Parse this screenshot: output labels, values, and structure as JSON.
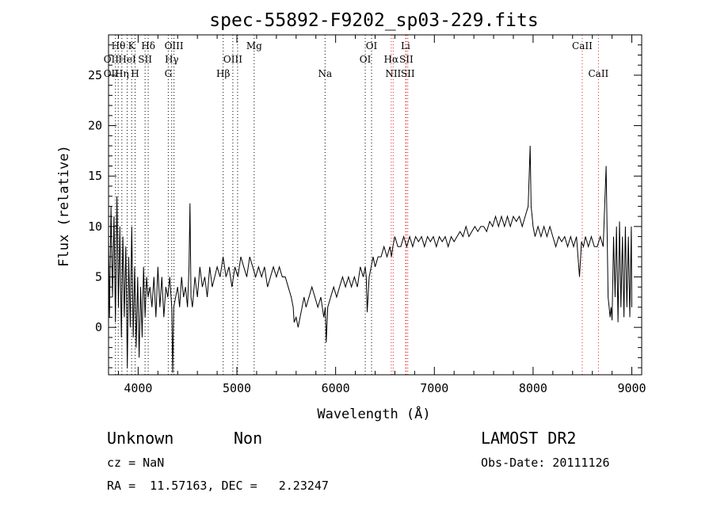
{
  "chart_data": {
    "type": "line",
    "title": "spec-55892-F9202_sp03-229.fits",
    "xlabel": "Wavelength (Å)",
    "ylabel": "Flux (relative)",
    "xlim": [
      3700,
      9100
    ],
    "ylim": [
      -4.7,
      29
    ],
    "grid": false,
    "x_ticks": [
      4000,
      5000,
      6000,
      7000,
      8000,
      9000
    ],
    "y_ticks": [
      0,
      5,
      10,
      15,
      20,
      25
    ],
    "series": [
      {
        "color": "#000000",
        "x": [
          3700,
          3710,
          3725,
          3740,
          3755,
          3770,
          3785,
          3800,
          3815,
          3830,
          3845,
          3860,
          3875,
          3890,
          3905,
          3920,
          3935,
          3950,
          3965,
          3980,
          3995,
          4010,
          4025,
          4040,
          4055,
          4070,
          4085,
          4100,
          4120,
          4140,
          4160,
          4180,
          4200,
          4220,
          4240,
          4260,
          4280,
          4300,
          4320,
          4340,
          4350,
          4360,
          4380,
          4400,
          4420,
          4440,
          4460,
          4480,
          4500,
          4515,
          4525,
          4535,
          4550,
          4575,
          4600,
          4625,
          4650,
          4675,
          4700,
          4725,
          4750,
          4775,
          4800,
          4830,
          4860,
          4890,
          4920,
          4950,
          4980,
          5010,
          5040,
          5070,
          5100,
          5130,
          5160,
          5190,
          5220,
          5250,
          5280,
          5310,
          5340,
          5370,
          5400,
          5430,
          5460,
          5490,
          5520,
          5550,
          5570,
          5580,
          5600,
          5620,
          5640,
          5660,
          5680,
          5700,
          5730,
          5760,
          5790,
          5820,
          5850,
          5880,
          5895,
          5905,
          5920,
          5950,
          5980,
          6010,
          6040,
          6070,
          6100,
          6130,
          6160,
          6190,
          6220,
          6250,
          6280,
          6300,
          6310,
          6320,
          6340,
          6360,
          6380,
          6400,
          6430,
          6460,
          6490,
          6520,
          6550,
          6565,
          6580,
          6600,
          6630,
          6660,
          6690,
          6720,
          6750,
          6780,
          6810,
          6840,
          6870,
          6900,
          6930,
          6960,
          6990,
          7020,
          7050,
          7080,
          7110,
          7140,
          7170,
          7200,
          7230,
          7260,
          7290,
          7320,
          7350,
          7380,
          7410,
          7440,
          7470,
          7500,
          7530,
          7560,
          7590,
          7620,
          7650,
          7680,
          7710,
          7740,
          7770,
          7800,
          7830,
          7860,
          7890,
          7920,
          7950,
          7970,
          7980,
          7990,
          8000,
          8020,
          8050,
          8080,
          8110,
          8140,
          8170,
          8200,
          8230,
          8260,
          8290,
          8320,
          8350,
          8380,
          8410,
          8440,
          8470,
          8490,
          8510,
          8530,
          8560,
          8590,
          8620,
          8650,
          8680,
          8710,
          8740,
          8760,
          8770,
          8780,
          8790,
          8800,
          8815,
          8830,
          8845,
          8860,
          8875,
          8890,
          8905,
          8920,
          8935,
          8950,
          8965,
          8980,
          8995,
          9000
        ],
        "y": [
          9,
          1,
          12,
          3,
          11,
          0.5,
          13,
          2,
          10,
          -1,
          9,
          1,
          8,
          -4,
          7,
          0,
          10,
          -1,
          6,
          -2,
          5,
          -3,
          4,
          -1,
          6,
          1,
          5,
          3,
          4,
          2,
          5,
          1,
          6,
          2,
          5,
          1,
          4,
          3,
          5,
          2,
          -4.5,
          2,
          3,
          4,
          2,
          5,
          3,
          4,
          2,
          6,
          12.3,
          3,
          2,
          5,
          3,
          6,
          4,
          5,
          3,
          6,
          4,
          5,
          6,
          5,
          7,
          5,
          6,
          4,
          6,
          5,
          7,
          6,
          5,
          7,
          6,
          5,
          6,
          5,
          6,
          4,
          5,
          6,
          5,
          6,
          5,
          5,
          4,
          3,
          2,
          0.5,
          1,
          0,
          1,
          2,
          3,
          2,
          3,
          4,
          3,
          2,
          3,
          1,
          2,
          -1.5,
          2,
          3,
          4,
          3,
          4,
          5,
          4,
          5,
          4,
          5,
          4,
          6,
          5,
          6,
          5,
          1.5,
          5,
          6,
          7,
          6,
          7,
          7,
          8,
          7,
          8,
          7,
          8,
          9,
          8,
          8,
          9,
          8,
          9,
          8,
          9,
          8.5,
          9,
          8,
          9,
          8.5,
          9,
          8,
          9,
          8.5,
          9,
          8,
          9,
          8.5,
          9,
          9.5,
          9,
          10,
          9,
          9.5,
          10,
          9.5,
          10,
          10,
          9.5,
          10.5,
          10,
          11,
          10,
          11,
          10,
          11,
          10,
          11,
          10.5,
          11,
          10,
          11,
          12,
          18,
          12,
          11,
          10,
          9,
          10,
          9,
          10,
          9,
          10,
          9,
          8,
          9,
          8.5,
          9,
          8,
          9,
          8,
          9,
          5,
          8.5,
          8,
          9,
          8,
          9,
          8,
          8,
          9,
          8,
          16,
          3,
          2,
          1,
          2,
          0.7,
          9,
          3,
          10,
          0.5,
          10.5,
          2,
          9,
          1,
          10,
          2,
          9,
          1,
          10,
          2
        ]
      }
    ],
    "annotations": [
      {
        "text": "Hθ",
        "x": 3800,
        "row": 1
      },
      {
        "text": "K",
        "x": 3934,
        "row": 1
      },
      {
        "text": "Hδ",
        "x": 4102,
        "row": 1
      },
      {
        "text": "OIII",
        "x": 4363,
        "row": 1
      },
      {
        "text": "Mg",
        "x": 5175,
        "row": 1
      },
      {
        "text": "OI",
        "x": 6364,
        "row": 1
      },
      {
        "text": "Li",
        "x": 6708,
        "row": 1
      },
      {
        "text": "CaII",
        "x": 8498,
        "row": 1
      },
      {
        "text": "OII",
        "x": 3727,
        "row": 2
      },
      {
        "text": "HeI",
        "x": 3889,
        "row": 2
      },
      {
        "text": "SII",
        "x": 4070,
        "row": 2
      },
      {
        "text": "Hγ",
        "x": 4340,
        "row": 2
      },
      {
        "text": "OIII",
        "x": 4959,
        "row": 2
      },
      {
        "text": "OI",
        "x": 6300,
        "row": 2
      },
      {
        "text": "Hα",
        "x": 6563,
        "row": 2
      },
      {
        "text": "SII",
        "x": 6716,
        "row": 2
      },
      {
        "text": "OII",
        "x": 3727,
        "row": 3
      },
      {
        "text": "Hη",
        "x": 3835,
        "row": 3
      },
      {
        "text": "H",
        "x": 3969,
        "row": 3
      },
      {
        "text": "G",
        "x": 4305,
        "row": 3
      },
      {
        "text": "Hβ",
        "x": 4861,
        "row": 3
      },
      {
        "text": "Na",
        "x": 5893,
        "row": 3
      },
      {
        "text": "NII",
        "x": 6583,
        "row": 3
      },
      {
        "text": "SII",
        "x": 6731,
        "row": 3
      },
      {
        "text": "CaII",
        "x": 8662,
        "row": 3
      }
    ],
    "line_markers": {
      "black": [
        3770,
        3798,
        3835,
        3889,
        3934,
        3969,
        4070,
        4102,
        4305,
        4340,
        4363,
        4861,
        4959,
        5007,
        5175,
        5893,
        6300,
        6364
      ],
      "red": [
        6563,
        6583,
        6708,
        6716,
        6731,
        8498,
        8662
      ],
      "black_color": "#000000",
      "red_color": "#e02020"
    }
  },
  "info": {
    "class": "Unknown",
    "subclass": "Non",
    "survey": "LAMOST DR2",
    "cz": "cz = NaN",
    "obs_date": "Obs-Date: 20111126",
    "coords": "RA =  11.57163, DEC =   2.23247"
  }
}
